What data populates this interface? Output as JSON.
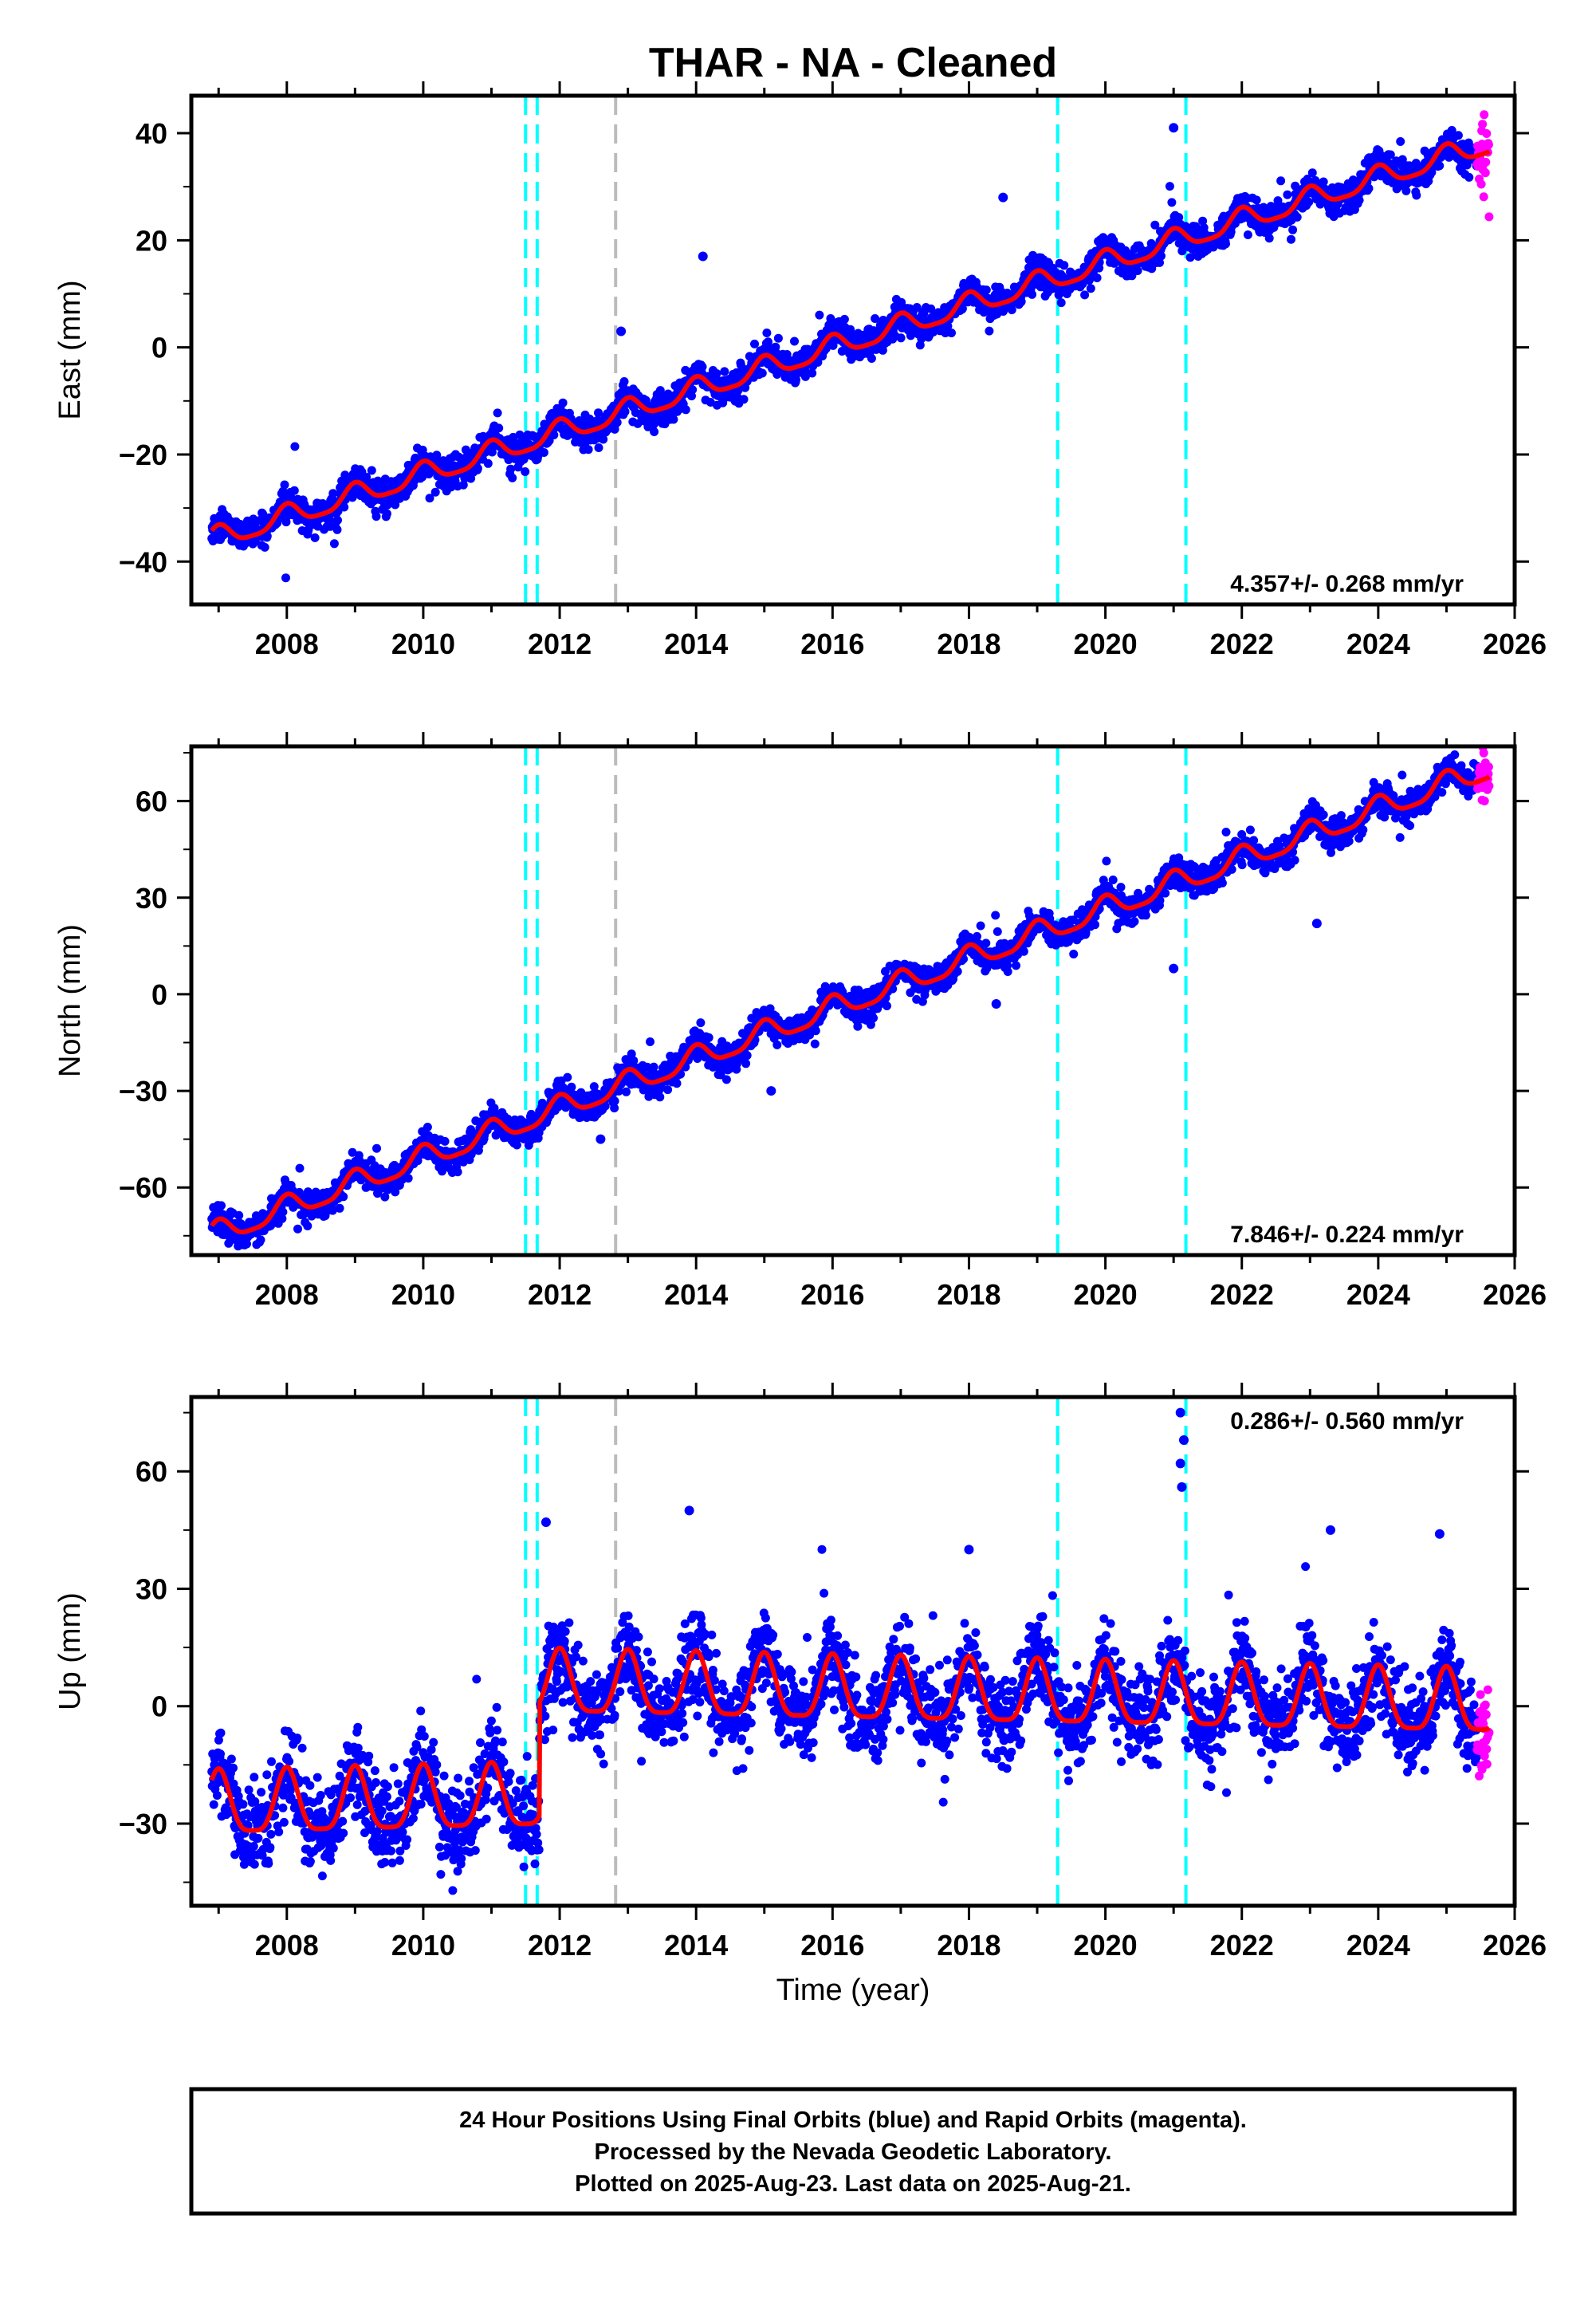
{
  "title": "THAR  - NA - Cleaned",
  "colors": {
    "final_orbits": "#0000ff",
    "rapid_orbits": "#ff00ff",
    "model": "#ff0000",
    "equipment_change": "#00ffff",
    "earthquake": "#bbbbbb"
  },
  "footer": {
    "line1": "24 Hour Positions Using Final Orbits (blue) and Rapid Orbits (magenta).",
    "line2": "Processed by the Nevada Geodetic Laboratory.",
    "line3": "Plotted on 2025-Aug-23. Last data on 2025-Aug-21."
  },
  "chart_data": [
    {
      "type": "scatter",
      "component": "east",
      "ylabel": "East (mm)",
      "xlabel": "",
      "xlim": [
        2006.6,
        2026.0
      ],
      "ylim": [
        -48,
        47
      ],
      "yticks": [
        -40,
        -20,
        0,
        20,
        40
      ],
      "xticks": [
        2008,
        2010,
        2012,
        2014,
        2016,
        2018,
        2020,
        2022,
        2024,
        2026
      ],
      "rate_label": "4.357+/- 0.268 mm/yr",
      "rate_position": "bottom-right",
      "data_start": 2006.9,
      "data_end": 2025.63,
      "rapid_start": 2025.45,
      "trend": [
        {
          "from": 2006.9,
          "to": 2025.63,
          "value_at_start": -36,
          "value_at_end": 38
        }
      ],
      "seasonal_amplitude": 2.0,
      "scatter_sigma": 1.4,
      "rapid_sigma": 4.0,
      "outliers": [
        {
          "x": 2014.1,
          "y": 17
        },
        {
          "x": 2018.5,
          "y": 28
        },
        {
          "x": 2021.0,
          "y": 41
        },
        {
          "x": 2012.9,
          "y": 3
        }
      ],
      "equipment_changes": [
        2011.5,
        2011.67,
        2019.3,
        2021.18
      ],
      "earthquakes": [
        2012.82
      ]
    },
    {
      "type": "scatter",
      "component": "north",
      "ylabel": "North (mm)",
      "xlabel": "",
      "xlim": [
        2006.6,
        2026.0
      ],
      "ylim": [
        -81,
        77
      ],
      "yticks": [
        -60,
        -30,
        0,
        30,
        60
      ],
      "xticks": [
        2008,
        2010,
        2012,
        2014,
        2016,
        2018,
        2020,
        2022,
        2024,
        2026
      ],
      "rate_label": "7.846+/- 0.224 mm/yr",
      "rate_position": "bottom-right",
      "data_start": 2006.9,
      "data_end": 2025.63,
      "rapid_start": 2025.45,
      "trend": [
        {
          "from": 2006.9,
          "to": 2025.63,
          "value_at_start": -75,
          "value_at_end": 70
        }
      ],
      "seasonal_amplitude": 3.5,
      "scatter_sigma": 2.2,
      "rapid_sigma": 6.0,
      "outliers": [
        {
          "x": 2018.4,
          "y": -3
        },
        {
          "x": 2021.0,
          "y": 8
        },
        {
          "x": 2023.1,
          "y": 22
        },
        {
          "x": 2015.1,
          "y": -30
        },
        {
          "x": 2012.6,
          "y": -45
        }
      ],
      "equipment_changes": [
        2011.5,
        2011.67,
        2019.3,
        2021.18
      ],
      "earthquakes": [
        2012.82
      ]
    },
    {
      "type": "scatter",
      "component": "up",
      "ylabel": "Up (mm)",
      "xlabel": "Time (year)",
      "xlim": [
        2006.6,
        2026.0
      ],
      "ylim": [
        -51,
        79
      ],
      "yticks": [
        -30,
        0,
        30,
        60
      ],
      "xticks": [
        2008,
        2010,
        2012,
        2014,
        2016,
        2018,
        2020,
        2022,
        2024,
        2026
      ],
      "rate_label": "0.286+/- 0.560 mm/yr",
      "rate_position": "top-right",
      "data_start": 2006.9,
      "data_end": 2025.63,
      "rapid_start": 2025.45,
      "trend": [
        {
          "from": 2006.9,
          "to": 2011.7,
          "value_at_start": -26,
          "value_at_end": -24
        },
        {
          "from": 2011.7,
          "to": 2025.63,
          "value_at_start": 5,
          "value_at_end": 0
        }
      ],
      "seasonal_amplitude": 8.0,
      "scatter_sigma": 5.5,
      "rapid_sigma": 14.0,
      "outliers": [
        {
          "x": 2013.9,
          "y": 50
        },
        {
          "x": 2011.8,
          "y": 47
        },
        {
          "x": 2021.1,
          "y": 75
        },
        {
          "x": 2021.15,
          "y": 68
        },
        {
          "x": 2021.1,
          "y": 62
        },
        {
          "x": 2021.12,
          "y": 56
        },
        {
          "x": 2024.9,
          "y": 44
        },
        {
          "x": 2018.0,
          "y": 40
        },
        {
          "x": 2023.3,
          "y": 45
        }
      ],
      "equipment_changes": [
        2011.5,
        2011.67,
        2019.3,
        2021.18
      ],
      "earthquakes": [
        2012.82
      ]
    }
  ]
}
